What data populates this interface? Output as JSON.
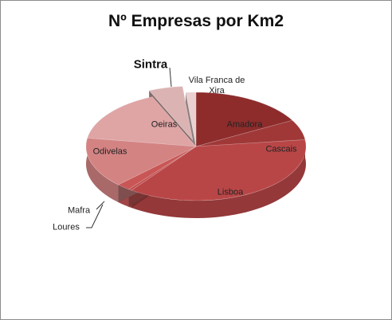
{
  "chart_data": {
    "type": "pie",
    "title": "Nº Empresas por Km2",
    "categories": [
      "Amadora",
      "Cascais",
      "Lisboa",
      "Mafra",
      "Loures",
      "Odivelas",
      "Oeiras",
      "Sintra",
      "Vila Franca de Xira"
    ],
    "values": [
      17,
      6,
      37,
      0.5,
      2,
      15,
      16,
      5,
      1.5
    ],
    "colors": [
      "#8e2c2c",
      "#a03838",
      "#b94647",
      "#c24c4c",
      "#c95656",
      "#d48383",
      "#dfa4a4",
      "#dcb3b3",
      "#ead0d0"
    ],
    "exploded": [
      "Sintra"
    ]
  }
}
